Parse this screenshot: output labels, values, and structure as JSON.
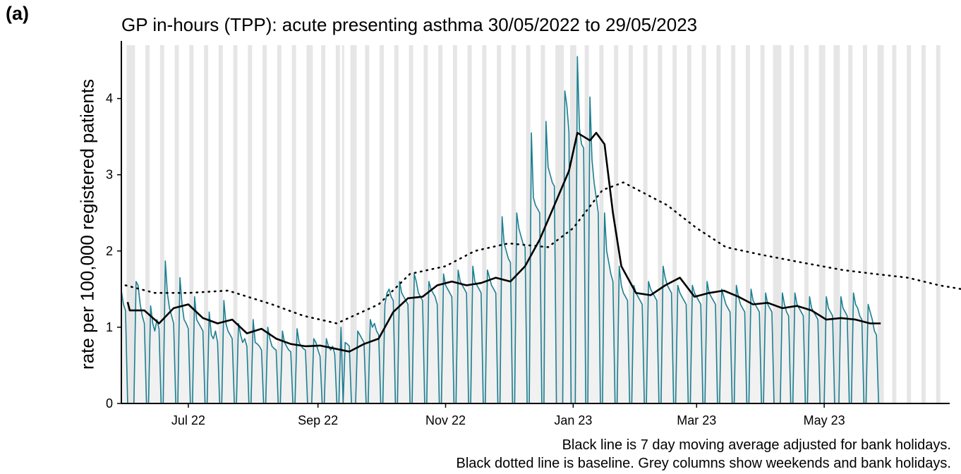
{
  "panel_label": "(a)",
  "chart_data": {
    "type": "line",
    "title": "GP in-hours (TPP): acute presenting asthma 30/05/2022 to 29/05/2023",
    "xlabel": "",
    "ylabel": "rate per 100,000 registered patients",
    "x_range": [
      "2022-05-30",
      "2023-06-30"
    ],
    "ylim": [
      0,
      4.7
    ],
    "yticks": [
      0,
      1,
      2,
      3,
      4
    ],
    "xticks": [
      {
        "label": "Jul 22",
        "date": "2022-07-01"
      },
      {
        "label": "Sep 22",
        "date": "2022-09-01"
      },
      {
        "label": "Nov 22",
        "date": "2022-11-01"
      },
      {
        "label": "Jan 23",
        "date": "2023-01-01"
      },
      {
        "label": "Mar 23",
        "date": "2023-03-01"
      },
      {
        "label": "May 23",
        "date": "2023-05-01"
      }
    ],
    "grid": false,
    "grey_columns": "weekends and bank holidays",
    "series": [
      {
        "style": "daily rate",
        "color": "#1b7f92",
        "weekday_rate_by_week": [
          {
            "week_start": "2022-05-30",
            "values": [
              1.48,
              1.3,
              1.22,
              0,
              0,
              0,
              0
            ]
          },
          {
            "week_start": "2022-06-06",
            "values": [
              1.6,
              1.55,
              1.3,
              1.15,
              1.05,
              0,
              0
            ]
          },
          {
            "week_start": "2022-06-13",
            "values": [
              1.28,
              1.05,
              0.95,
              1.1,
              0.98,
              0,
              0
            ]
          },
          {
            "week_start": "2022-06-20",
            "values": [
              1.87,
              1.45,
              1.25,
              1.15,
              1.05,
              0,
              0
            ]
          },
          {
            "week_start": "2022-06-27",
            "values": [
              1.65,
              1.3,
              1.1,
              1.05,
              0.98,
              0,
              0
            ]
          },
          {
            "week_start": "2022-07-04",
            "values": [
              1.4,
              1.1,
              1.05,
              1.0,
              0.95,
              0,
              0
            ]
          },
          {
            "week_start": "2022-07-11",
            "values": [
              1.2,
              0.9,
              0.85,
              0.95,
              0.8,
              0,
              0
            ]
          },
          {
            "week_start": "2022-07-18",
            "values": [
              1.35,
              1.05,
              0.95,
              0.9,
              0.85,
              0,
              0
            ]
          },
          {
            "week_start": "2022-07-25",
            "values": [
              1.05,
              0.9,
              0.8,
              0.85,
              0.75,
              0,
              0
            ]
          },
          {
            "week_start": "2022-08-01",
            "values": [
              1.1,
              0.8,
              0.78,
              0.75,
              0.7,
              0,
              0
            ]
          },
          {
            "week_start": "2022-08-08",
            "values": [
              1.0,
              0.85,
              0.75,
              0.72,
              0.7,
              0,
              0
            ]
          },
          {
            "week_start": "2022-08-15",
            "values": [
              0.95,
              0.8,
              0.75,
              0.7,
              0.68,
              0,
              0
            ]
          },
          {
            "week_start": "2022-08-22",
            "values": [
              0.98,
              0.8,
              0.75,
              0.72,
              0.7,
              0,
              0
            ]
          },
          {
            "week_start": "2022-08-29",
            "values": [
              0,
              0.85,
              0.8,
              0.7,
              0.62,
              0,
              0
            ]
          },
          {
            "week_start": "2022-09-05",
            "values": [
              0.85,
              0.75,
              0.7,
              0.75,
              0.65,
              0,
              0
            ]
          },
          {
            "week_start": "2022-09-12",
            "values": [
              1.0,
              0,
              0.8,
              0.78,
              0.75,
              0,
              0
            ]
          },
          {
            "week_start": "2022-09-19",
            "values": [
              0,
              0.95,
              0.9,
              0.85,
              0.8,
              0,
              0
            ]
          },
          {
            "week_start": "2022-09-26",
            "values": [
              1.1,
              1.0,
              1.05,
              0.95,
              0.9,
              0,
              0
            ]
          },
          {
            "week_start": "2022-10-03",
            "values": [
              1.3,
              1.45,
              1.5,
              1.4,
              1.35,
              0,
              0
            ]
          },
          {
            "week_start": "2022-10-10",
            "values": [
              1.6,
              1.45,
              1.4,
              1.35,
              1.3,
              0,
              0
            ]
          },
          {
            "week_start": "2022-10-17",
            "values": [
              1.7,
              1.6,
              1.45,
              1.4,
              1.35,
              0,
              0
            ]
          },
          {
            "week_start": "2022-10-24",
            "values": [
              1.6,
              1.5,
              1.45,
              1.4,
              1.3,
              0,
              0
            ]
          },
          {
            "week_start": "2022-10-31",
            "values": [
              1.7,
              1.55,
              1.5,
              1.45,
              1.4,
              0,
              0
            ]
          },
          {
            "week_start": "2022-11-07",
            "values": [
              1.75,
              1.6,
              1.55,
              1.5,
              1.45,
              0,
              0
            ]
          },
          {
            "week_start": "2022-11-14",
            "values": [
              1.8,
              1.6,
              1.55,
              1.5,
              1.45,
              0,
              0
            ]
          },
          {
            "week_start": "2022-11-21",
            "values": [
              1.75,
              1.65,
              1.55,
              1.5,
              1.45,
              0,
              0
            ]
          },
          {
            "week_start": "2022-11-28",
            "values": [
              2.45,
              2.1,
              2.0,
              1.9,
              1.85,
              0,
              0
            ]
          },
          {
            "week_start": "2022-12-05",
            "values": [
              2.5,
              2.3,
              2.2,
              2.1,
              2.05,
              0,
              0
            ]
          },
          {
            "week_start": "2022-12-12",
            "values": [
              3.55,
              2.7,
              2.6,
              2.55,
              2.5,
              0,
              0
            ]
          },
          {
            "week_start": "2022-12-19",
            "values": [
              3.7,
              3.1,
              3.0,
              2.9,
              2.85,
              0,
              0
            ]
          },
          {
            "week_start": "2022-12-26",
            "values": [
              0,
              0,
              4.1,
              3.9,
              3.55,
              0,
              0
            ]
          },
          {
            "week_start": "2023-01-02",
            "values": [
              0,
              4.55,
              3.6,
              3.4,
              3.35,
              0,
              0
            ]
          },
          {
            "week_start": "2023-01-09",
            "values": [
              4.02,
              3.2,
              2.9,
              2.7,
              2.5,
              0,
              0
            ]
          },
          {
            "week_start": "2023-01-16",
            "values": [
              2.5,
              2.0,
              1.85,
              1.7,
              1.6,
              0,
              0
            ]
          },
          {
            "week_start": "2023-01-23",
            "values": [
              1.8,
              1.55,
              1.45,
              1.4,
              1.35,
              0,
              0
            ]
          },
          {
            "week_start": "2023-01-30",
            "values": [
              1.55,
              1.45,
              1.4,
              1.35,
              1.3,
              0,
              0
            ]
          },
          {
            "week_start": "2023-02-06",
            "values": [
              1.6,
              1.5,
              1.45,
              1.4,
              1.35,
              0,
              0
            ]
          },
          {
            "week_start": "2023-02-13",
            "values": [
              1.8,
              1.65,
              1.55,
              1.5,
              1.45,
              0,
              0
            ]
          },
          {
            "week_start": "2023-02-20",
            "values": [
              1.55,
              1.45,
              1.4,
              1.35,
              1.3,
              0,
              0
            ]
          },
          {
            "week_start": "2023-02-27",
            "values": [
              1.55,
              1.45,
              1.4,
              1.35,
              1.3,
              0,
              0
            ]
          },
          {
            "week_start": "2023-03-06",
            "values": [
              1.6,
              1.45,
              1.4,
              1.35,
              1.3,
              0,
              0
            ]
          },
          {
            "week_start": "2023-03-13",
            "values": [
              1.5,
              1.4,
              1.3,
              1.25,
              1.2,
              0,
              0
            ]
          },
          {
            "week_start": "2023-03-20",
            "values": [
              1.55,
              1.4,
              1.3,
              1.25,
              1.2,
              0,
              0
            ]
          },
          {
            "week_start": "2023-03-27",
            "values": [
              1.5,
              1.35,
              1.3,
              1.25,
              1.2,
              0,
              0
            ]
          },
          {
            "week_start": "2023-04-03",
            "values": [
              1.45,
              1.3,
              1.25,
              1.2,
              0,
              0,
              0
            ]
          },
          {
            "week_start": "2023-04-10",
            "values": [
              0,
              1.45,
              1.3,
              1.2,
              1.15,
              0,
              0
            ]
          },
          {
            "week_start": "2023-04-17",
            "values": [
              1.45,
              1.3,
              1.25,
              1.2,
              1.15,
              0,
              0
            ]
          },
          {
            "week_start": "2023-04-24",
            "values": [
              1.4,
              1.25,
              1.2,
              1.15,
              1.1,
              0,
              0
            ]
          },
          {
            "week_start": "2023-05-01",
            "values": [
              0,
              1.4,
              1.25,
              1.2,
              1.15,
              0,
              0
            ]
          },
          {
            "week_start": "2023-05-08",
            "values": [
              0,
              1.4,
              1.25,
              1.2,
              1.15,
              0,
              0
            ]
          },
          {
            "week_start": "2023-05-15",
            "values": [
              1.45,
              1.3,
              1.25,
              1.15,
              1.1,
              0,
              0
            ]
          },
          {
            "week_start": "2023-05-22",
            "values": [
              1.3,
              1.2,
              1.1,
              0.95,
              0.9,
              0,
              0
            ]
          },
          {
            "week_start": "2023-05-29",
            "values": [
              0
            ]
          }
        ]
      },
      {
        "style": "7 day moving average",
        "color": "#000000",
        "points": [
          [
            "2022-06-02",
            1.33
          ],
          [
            "2022-06-03",
            1.22
          ],
          [
            "2022-06-10",
            1.22
          ],
          [
            "2022-06-17",
            1.05
          ],
          [
            "2022-06-24",
            1.25
          ],
          [
            "2022-07-01",
            1.3
          ],
          [
            "2022-07-08",
            1.12
          ],
          [
            "2022-07-15",
            1.05
          ],
          [
            "2022-07-22",
            1.1
          ],
          [
            "2022-07-29",
            0.92
          ],
          [
            "2022-08-05",
            0.98
          ],
          [
            "2022-08-12",
            0.85
          ],
          [
            "2022-08-19",
            0.78
          ],
          [
            "2022-08-26",
            0.75
          ],
          [
            "2022-09-02",
            0.76
          ],
          [
            "2022-09-09",
            0.72
          ],
          [
            "2022-09-16",
            0.68
          ],
          [
            "2022-09-23",
            0.78
          ],
          [
            "2022-09-30",
            0.85
          ],
          [
            "2022-10-07",
            1.2
          ],
          [
            "2022-10-14",
            1.38
          ],
          [
            "2022-10-21",
            1.4
          ],
          [
            "2022-10-28",
            1.55
          ],
          [
            "2022-11-04",
            1.6
          ],
          [
            "2022-11-11",
            1.55
          ],
          [
            "2022-11-18",
            1.58
          ],
          [
            "2022-11-25",
            1.65
          ],
          [
            "2022-12-02",
            1.6
          ],
          [
            "2022-12-09",
            1.8
          ],
          [
            "2022-12-16",
            2.15
          ],
          [
            "2022-12-23",
            2.6
          ],
          [
            "2022-12-30",
            3.05
          ],
          [
            "2023-01-03",
            3.55
          ],
          [
            "2023-01-06",
            3.5
          ],
          [
            "2023-01-09",
            3.45
          ],
          [
            "2023-01-12",
            3.55
          ],
          [
            "2023-01-16",
            3.4
          ],
          [
            "2023-01-20",
            2.5
          ],
          [
            "2023-01-24",
            1.8
          ],
          [
            "2023-01-31",
            1.45
          ],
          [
            "2023-02-07",
            1.42
          ],
          [
            "2023-02-14",
            1.55
          ],
          [
            "2023-02-21",
            1.65
          ],
          [
            "2023-02-28",
            1.4
          ],
          [
            "2023-03-07",
            1.45
          ],
          [
            "2023-03-14",
            1.48
          ],
          [
            "2023-03-21",
            1.4
          ],
          [
            "2023-03-28",
            1.3
          ],
          [
            "2023-04-04",
            1.32
          ],
          [
            "2023-04-11",
            1.25
          ],
          [
            "2023-04-18",
            1.28
          ],
          [
            "2023-04-25",
            1.22
          ],
          [
            "2023-05-02",
            1.1
          ],
          [
            "2023-05-09",
            1.12
          ],
          [
            "2023-05-16",
            1.1
          ],
          [
            "2023-05-23",
            1.05
          ],
          [
            "2023-05-28",
            1.05
          ]
        ]
      },
      {
        "style": "baseline",
        "color": "#000000",
        "points": [
          [
            "2022-06-01",
            1.55
          ],
          [
            "2022-06-15",
            1.45
          ],
          [
            "2022-07-01",
            1.45
          ],
          [
            "2022-07-20",
            1.48
          ],
          [
            "2022-08-10",
            1.3
          ],
          [
            "2022-08-25",
            1.15
          ],
          [
            "2022-09-10",
            1.05
          ],
          [
            "2022-09-30",
            1.3
          ],
          [
            "2022-10-15",
            1.7
          ],
          [
            "2022-11-01",
            1.8
          ],
          [
            "2022-11-15",
            2.0
          ],
          [
            "2022-12-01",
            2.1
          ],
          [
            "2022-12-20",
            2.05
          ],
          [
            "2023-01-01",
            2.3
          ],
          [
            "2023-01-15",
            2.8
          ],
          [
            "2023-01-25",
            2.9
          ],
          [
            "2023-02-01",
            2.8
          ],
          [
            "2023-02-15",
            2.6
          ],
          [
            "2023-03-01",
            2.3
          ],
          [
            "2023-03-15",
            2.05
          ],
          [
            "2023-04-01",
            1.95
          ],
          [
            "2023-04-20",
            1.85
          ],
          [
            "2023-05-10",
            1.75
          ],
          [
            "2023-05-25",
            1.7
          ],
          [
            "2023-06-10",
            1.65
          ],
          [
            "2023-06-25",
            1.55
          ],
          [
            "2023-07-10",
            1.48
          ],
          [
            "2023-07-20",
            1.43
          ]
        ]
      }
    ]
  },
  "captions": {
    "line1": "Black line is 7 day moving average adjusted for bank holidays.",
    "line2": "Black dotted line is baseline. Grey columns show weekends and bank holidays."
  }
}
